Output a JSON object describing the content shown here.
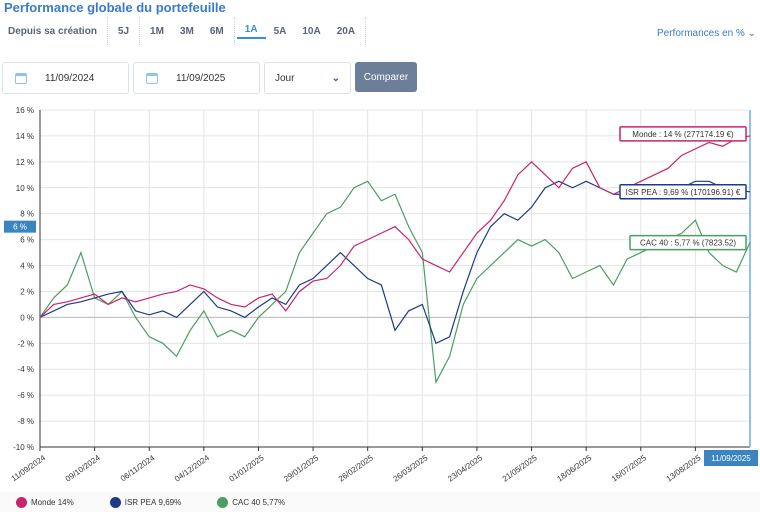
{
  "title": "Performance globale du portefeuille",
  "periods": [
    "Depuis sa création",
    "5J",
    "1M",
    "3M",
    "6M",
    "1A",
    "5A",
    "10A",
    "20A"
  ],
  "active_period": "1A",
  "perf_selector": "Performances en %",
  "date_from": "11/09/2024",
  "date_to": "11/09/2025",
  "frequency": "Jour",
  "compare_label": "Comparer",
  "crosshair": {
    "y_label": "6 %",
    "x_label": "11/09/2025"
  },
  "chart_data": {
    "type": "line",
    "ylim": [
      -10,
      16
    ],
    "yticks": [
      -10,
      -8,
      -6,
      -4,
      -2,
      0,
      2,
      4,
      6,
      8,
      10,
      12,
      14,
      16
    ],
    "ytick_labels": [
      "-10 %",
      "-8 %",
      "-6 %",
      "-4 %",
      "-2 %",
      "0 %",
      "2 %",
      "4 %",
      "6 %",
      "8 %",
      "10 %",
      "12 %",
      "14 %",
      "16 %"
    ],
    "xtick_labels": [
      "11/09/2024",
      "09/10/2024",
      "06/11/2024",
      "04/12/2024",
      "01/01/2025",
      "29/01/2025",
      "26/02/2025",
      "26/03/2025",
      "23/04/2025",
      "21/05/2025",
      "18/06/2025",
      "16/07/2025",
      "13/08/2025"
    ],
    "x_unit": "weeks since 11/09/2024",
    "series": [
      {
        "name": "Monde",
        "color": "#c8246e",
        "summary": "14%",
        "tooltip": "Monde : 14 % (277174.19 €)",
        "values": [
          0,
          1,
          1.2,
          1.5,
          1.8,
          1,
          1.5,
          1.2,
          1.5,
          1.8,
          2,
          2.5,
          2.2,
          1.5,
          1,
          0.8,
          1.5,
          1.8,
          0.5,
          2,
          2.8,
          3,
          4,
          5.5,
          6,
          6.5,
          7,
          6,
          4.5,
          4,
          3.5,
          5,
          6.5,
          7.5,
          9,
          11,
          12,
          11,
          10,
          11.5,
          12,
          10,
          9.5,
          10,
          10.5,
          11,
          11.5,
          12.5,
          13,
          13.5,
          13.2,
          13.8,
          14
        ]
      },
      {
        "name": "ISR PEA",
        "color": "#1f3a85",
        "summary": "9,69%",
        "tooltip": "ISR PEA : 9,69 % (170196.91) €",
        "values": [
          0,
          0.5,
          1,
          1.2,
          1.5,
          1.8,
          2,
          0.5,
          0.2,
          0.5,
          0,
          1,
          2,
          0.8,
          0.5,
          0,
          0.8,
          1.5,
          1,
          2.5,
          3,
          4,
          5,
          4,
          3,
          2.5,
          -1,
          0.5,
          1,
          -2,
          -1.5,
          2,
          5,
          7,
          8,
          7.5,
          8.5,
          10,
          10.5,
          10,
          10.5,
          10,
          9.5,
          9.5,
          10,
          9.5,
          9.5,
          10,
          10.5,
          10.5,
          10,
          9.8,
          9.69
        ]
      },
      {
        "name": "CAC 40",
        "color": "#4a9e62",
        "summary": "5,77%",
        "tooltip": "CAC 40 : 5,77 % (7823.52)",
        "values": [
          0,
          1.5,
          2.5,
          5,
          1.5,
          1,
          2,
          0,
          -1.5,
          -2,
          -3,
          -1,
          0.5,
          -1.5,
          -1,
          -1.5,
          0,
          1,
          2,
          5,
          6.5,
          8,
          8.5,
          10,
          10.5,
          9,
          9.5,
          7,
          5,
          -5,
          -3,
          1,
          3,
          4,
          5,
          6,
          5.5,
          6,
          5,
          3,
          3.5,
          4,
          2.5,
          4.5,
          5,
          5.5,
          6,
          6.5,
          7.5,
          5,
          4,
          3.5,
          5.77
        ]
      }
    ]
  }
}
